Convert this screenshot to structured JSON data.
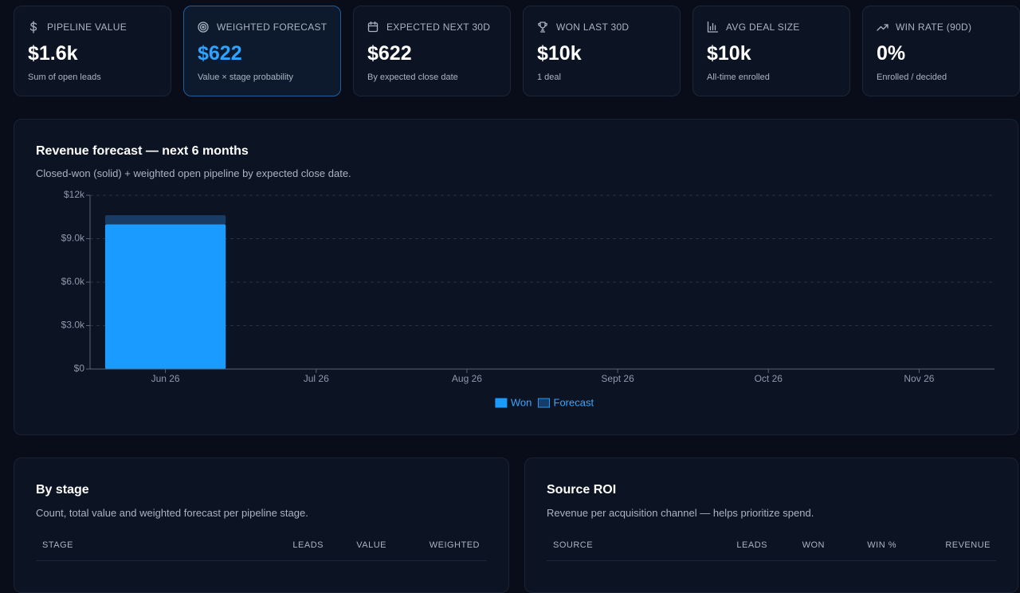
{
  "kpis": [
    {
      "label": "PIPELINE VALUE",
      "value": "$1.6k",
      "note": "Sum of open leads"
    },
    {
      "label": "WEIGHTED FORECAST",
      "value": "$622",
      "note": "Value × stage probability"
    },
    {
      "label": "EXPECTED NEXT 30D",
      "value": "$622",
      "note": "By expected close date"
    },
    {
      "label": "WON LAST 30D",
      "value": "$10k",
      "note": "1 deal"
    },
    {
      "label": "AVG DEAL SIZE",
      "value": "$10k",
      "note": "All-time enrolled"
    },
    {
      "label": "WIN RATE (90D)",
      "value": "0%",
      "note": "Enrolled / decided"
    }
  ],
  "chart_data": {
    "type": "stacked_bar",
    "title": "Revenue forecast — next 6 months",
    "subtitle": "Closed-won (solid) + weighted open pipeline by expected close date.",
    "categories": [
      "Jun 26",
      "Jul 26",
      "Aug 26",
      "Sept 26",
      "Oct 26",
      "Nov 26"
    ],
    "series": [
      {
        "name": "Won",
        "color": "#1a9bff",
        "values": [
          10000,
          0,
          0,
          0,
          0,
          0
        ]
      },
      {
        "name": "Forecast",
        "color": "#173c66",
        "values": [
          622,
          0,
          0,
          0,
          0,
          0
        ]
      }
    ],
    "ylim": [
      0,
      12000
    ],
    "yticks": [
      {
        "value": 0,
        "label": "$0"
      },
      {
        "value": 3000,
        "label": "$3.0k"
      },
      {
        "value": 6000,
        "label": "$6.0k"
      },
      {
        "value": 9000,
        "label": "$9.0k"
      },
      {
        "value": 12000,
        "label": "$12k"
      }
    ],
    "grid": true,
    "legend": "bottom"
  },
  "by_stage": {
    "title": "By stage",
    "subtitle": "Count, total value and weighted forecast per pipeline stage.",
    "columns": [
      "STAGE",
      "LEADS",
      "VALUE",
      "WEIGHTED"
    ]
  },
  "source_roi": {
    "title": "Source ROI",
    "subtitle": "Revenue per acquisition channel — helps prioritize spend.",
    "columns": [
      "SOURCE",
      "LEADS",
      "WON",
      "WIN %",
      "REVENUE"
    ]
  }
}
